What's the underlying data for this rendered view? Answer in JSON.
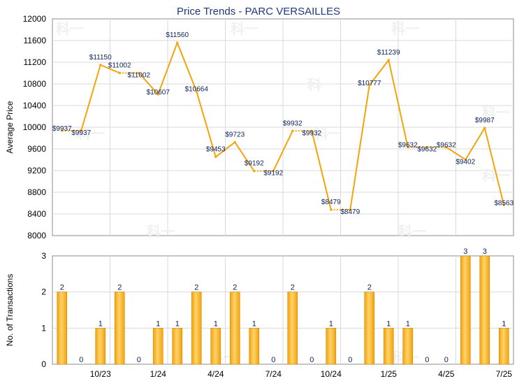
{
  "chart_data": [
    {
      "type": "line",
      "title": "Price Trends - PARC VERSAILLES",
      "ylabel": "Average Price",
      "ylim": [
        8000,
        12000
      ],
      "yticks": [
        "12000",
        "11600",
        "11200",
        "10800",
        "10400",
        "10000",
        "9600",
        "9200",
        "8800",
        "8400",
        "8000"
      ],
      "grid": true,
      "color": "#f5a30a",
      "series": [
        {
          "values": [
            9937,
            9937,
            11150,
            11002,
            11002,
            10607,
            11560,
            10664,
            9453,
            9723,
            9192,
            9192,
            9932,
            9932,
            8479,
            8479,
            10777,
            11239,
            9632,
            9632,
            9632,
            9402,
            9987,
            8563
          ]
        }
      ],
      "value_labels": [
        "$9937",
        "$9937",
        "$11150",
        "$11002",
        "$11002",
        "$10607",
        "$11560",
        "$10664",
        "$9453",
        "$9723",
        "$9192",
        "$9192",
        "$9932",
        "$9932",
        "$8479",
        "$8479",
        "$10777",
        "$11239",
        "$9632",
        "$9632",
        "$9632",
        "$9402",
        "$9987",
        "$8563"
      ],
      "dotted_segments_after_index": [
        0,
        3,
        10,
        12,
        14,
        18,
        19
      ]
    },
    {
      "type": "bar",
      "ylabel": "No. of Transactions",
      "ylim": [
        0,
        3
      ],
      "yticks": [
        "3",
        "2",
        "1",
        "0"
      ],
      "grid": true,
      "color": "#f5a30a",
      "values": [
        2,
        0,
        1,
        2,
        0,
        1,
        1,
        2,
        1,
        2,
        1,
        0,
        2,
        0,
        1,
        0,
        2,
        1,
        1,
        0,
        0,
        3,
        3,
        1
      ],
      "x_tick_labels": [
        "10/23",
        "1/24",
        "4/24",
        "7/24",
        "10/24",
        "1/25",
        "4/25",
        "7/25"
      ]
    }
  ],
  "watermark": "科一"
}
